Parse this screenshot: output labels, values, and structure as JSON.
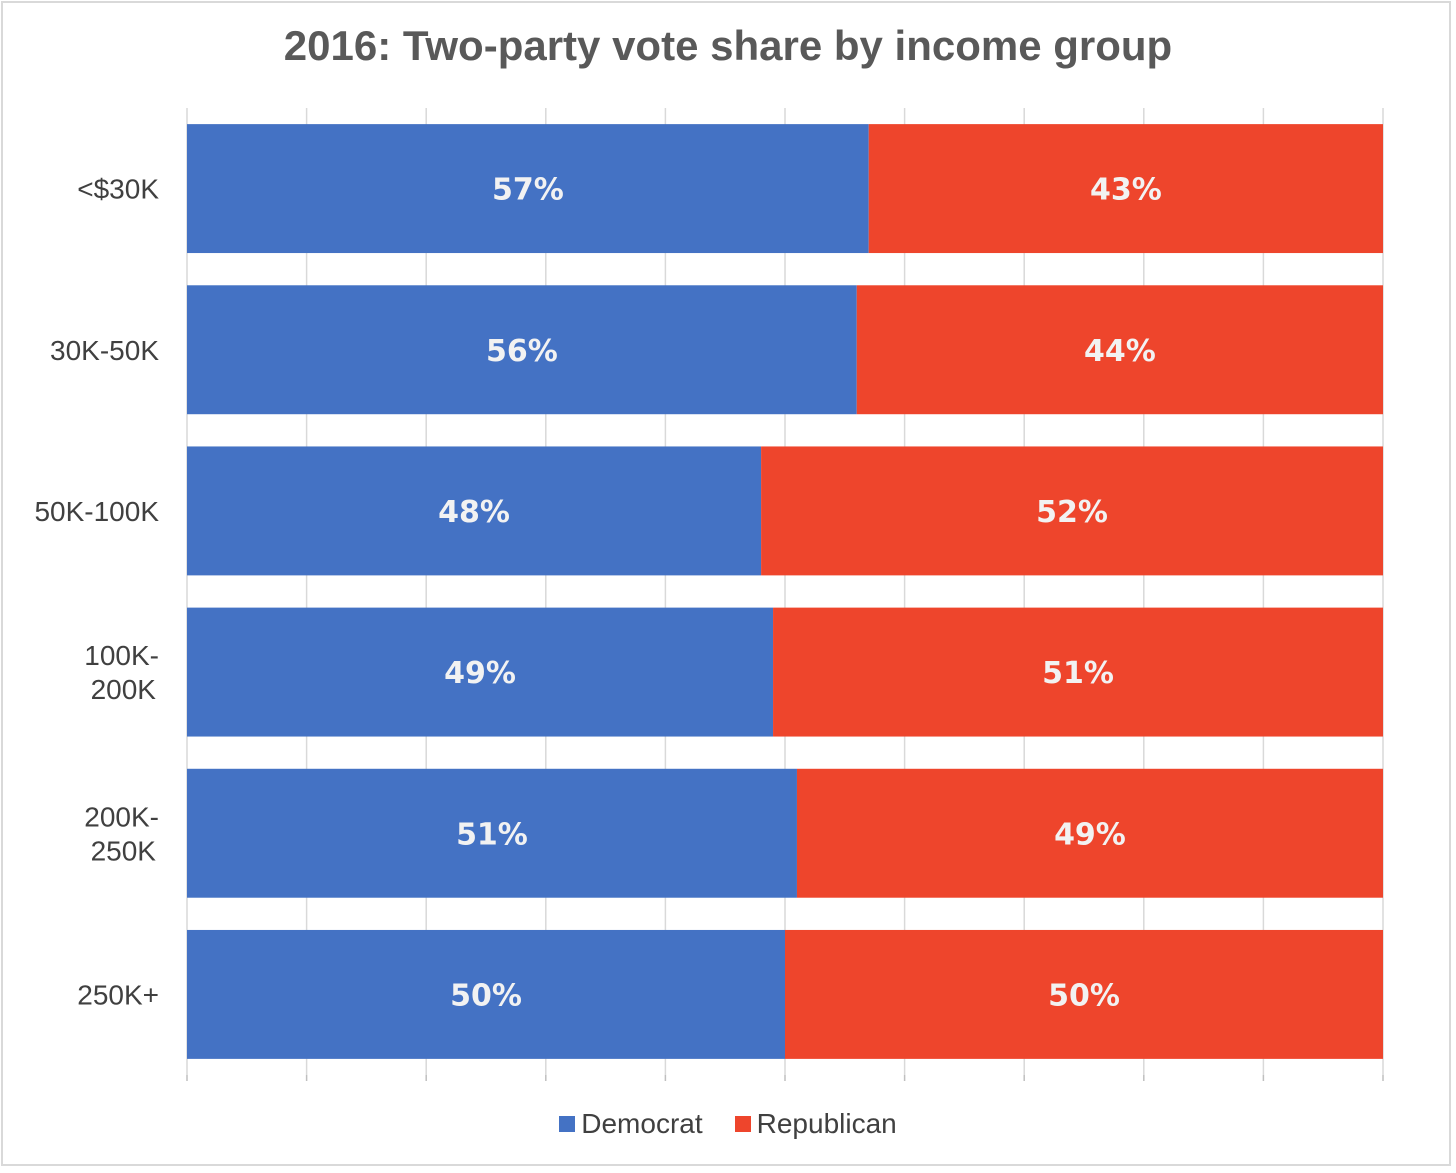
{
  "chart_data": {
    "type": "bar",
    "orientation": "horizontal",
    "stacked": "percent",
    "title": "2016: Two-party vote share by income group",
    "categories": [
      "<$30K",
      "30K-50K",
      "50K-100K",
      "100K-\n200K",
      "200K-\n250K",
      "250K+"
    ],
    "series": [
      {
        "name": "Democrat",
        "color": "#4472c4",
        "values": [
          57,
          56,
          48,
          49,
          51,
          50
        ]
      },
      {
        "name": "Republican",
        "color": "#ee452c",
        "values": [
          43,
          44,
          52,
          51,
          49,
          50
        ]
      }
    ],
    "value_format": "percent",
    "xlim": [
      0,
      100
    ],
    "grid": true,
    "legend": "bottom"
  }
}
